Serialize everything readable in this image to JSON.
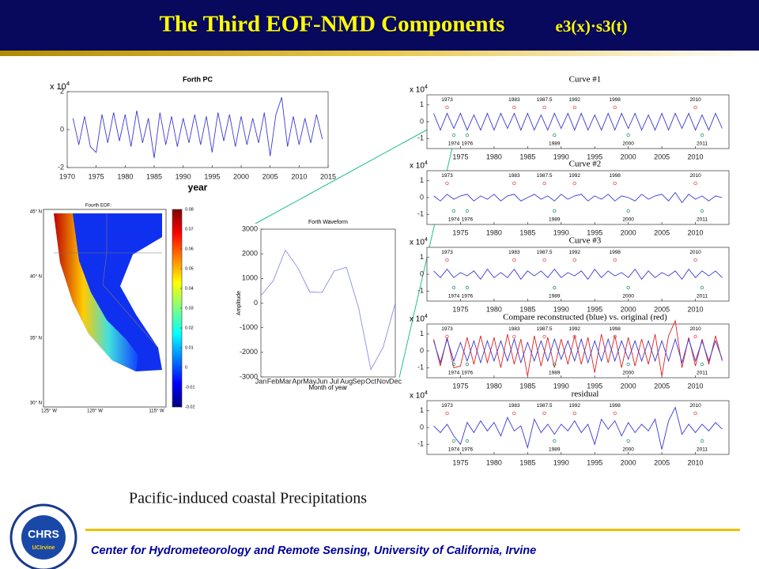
{
  "header": {
    "title": "The Third EOF-NMD Components",
    "formula": "e3(x)·s3(t)"
  },
  "caption": "Pacific-induced coastal Precipitations",
  "footer": "Center for Hydrometeorology and Remote Sensing, University of California, Irvine",
  "logo": {
    "name": "CHRS",
    "sub": "UCIrvine"
  },
  "pc": {
    "type": "line",
    "title": "Forth PC",
    "xlabel": "year",
    "multiplier": "x 10",
    "multiplier_exp": "4",
    "color": "#3a3ad6",
    "x": [
      1971,
      1972,
      1973,
      1974,
      1975,
      1976,
      1977,
      1978,
      1979,
      1980,
      1981,
      1982,
      1983,
      1984,
      1985,
      1986,
      1987,
      1988,
      1989,
      1990,
      1991,
      1992,
      1993,
      1994,
      1995,
      1996,
      1997,
      1998,
      1999,
      2000,
      2001,
      2002,
      2003,
      2004,
      2005,
      2006,
      2007,
      2008,
      2009,
      2010,
      2011,
      2012,
      2013,
      2014
    ],
    "values": [
      0.6,
      -0.8,
      0.7,
      -0.9,
      -1.2,
      0.8,
      -0.7,
      0.9,
      -0.6,
      0.8,
      -0.9,
      1.0,
      -0.7,
      0.6,
      -1.5,
      0.9,
      -0.8,
      0.7,
      -0.9,
      0.6,
      -0.7,
      0.8,
      -0.8,
      0.7,
      -1.2,
      0.9,
      -0.6,
      0.8,
      -0.9,
      0.7,
      -0.8,
      0.6,
      -0.7,
      0.9,
      -1.4,
      0.8,
      1.7,
      -0.9,
      0.7,
      -0.8,
      0.6,
      -0.7,
      0.8,
      -0.5
    ],
    "xlim": [
      1970,
      2015
    ],
    "xticks": [
      1970,
      1975,
      1980,
      1985,
      1990,
      1995,
      2000,
      2005,
      2010,
      2015
    ],
    "ylim": [
      -2,
      2
    ],
    "yticks": [
      -2,
      0,
      2
    ]
  },
  "map": {
    "title": "Fourth EOF:",
    "lat_labels": [
      "45° N",
      "40° N",
      "35° N",
      "30° N"
    ],
    "lon_labels": [
      "125° W",
      "120° W",
      "115° W"
    ],
    "colorbar": {
      "lim": [
        -0.02,
        0.08
      ],
      "ticks": [
        0.08,
        0.07,
        0.06,
        0.05,
        0.04,
        0.03,
        0.02,
        0.01,
        0,
        -0.01,
        -0.02
      ]
    }
  },
  "waveform": {
    "type": "line",
    "title": "Forth Waveform",
    "xlabel": "Month of year",
    "ylabel": "Amplitude",
    "color": "#8a8ae8",
    "categories": [
      "Jan",
      "Feb",
      "Mar",
      "Apr",
      "May",
      "Jun",
      "Jul",
      "Aug",
      "Sep",
      "Oct",
      "Nov",
      "Dec"
    ],
    "values": [
      300,
      900,
      2150,
      1450,
      450,
      430,
      1300,
      1450,
      -200,
      -2700,
      -1800,
      0
    ],
    "ylim": [
      -3000,
      3000
    ],
    "yticks": [
      -3000,
      -2000,
      -1000,
      0,
      1000,
      2000,
      3000
    ]
  },
  "panels": [
    {
      "type": "line",
      "title": "Curve #1",
      "multiplier": "x 10",
      "multiplier_exp": "4",
      "x": [
        1971,
        1972,
        1973,
        1974,
        1975,
        1976,
        1977,
        1978,
        1979,
        1980,
        1981,
        1982,
        1983,
        1984,
        1985,
        1986,
        1987,
        1988,
        1989,
        1990,
        1991,
        1992,
        1993,
        1994,
        1995,
        1996,
        1997,
        1998,
        1999,
        2000,
        2001,
        2002,
        2003,
        2004,
        2005,
        2006,
        2007,
        2008,
        2009,
        2010,
        2011,
        2012,
        2013,
        2014
      ],
      "series": [
        {
          "color": "#3a3ad6",
          "values": [
            0.5,
            -0.5,
            0.5,
            -0.4,
            0.5,
            -0.5,
            0.4,
            -0.5,
            0.5,
            -0.5,
            0.5,
            -0.4,
            0.5,
            -0.5,
            0.5,
            -0.5,
            0.4,
            -0.5,
            0.5,
            -0.4,
            0.5,
            -0.5,
            0.5,
            -0.5,
            0.4,
            -0.5,
            0.5,
            -0.5,
            0.5,
            -0.4,
            0.5,
            -0.5,
            0.4,
            -0.5,
            0.5,
            -0.5,
            0.5,
            -0.4,
            0.5,
            -0.5,
            0.4,
            -0.5,
            0.5,
            -0.4
          ]
        }
      ],
      "xlim": [
        1970,
        2015
      ],
      "xticks": [
        1975,
        1980,
        1985,
        1990,
        1995,
        2000,
        2005,
        2010
      ],
      "ylim": [
        -1.6,
        1.6
      ],
      "yticks": [
        -1,
        0,
        1
      ],
      "events_top": [
        1973,
        1983,
        1987.5,
        1992,
        1998,
        2010
      ],
      "events_bottom": [
        1974,
        1976,
        1989,
        2000,
        2011
      ]
    },
    {
      "type": "line",
      "title": "Curve #2",
      "multiplier": "x 10",
      "multiplier_exp": "4",
      "x": [
        1971,
        1972,
        1973,
        1974,
        1975,
        1976,
        1977,
        1978,
        1979,
        1980,
        1981,
        1982,
        1983,
        1984,
        1985,
        1986,
        1987,
        1988,
        1989,
        1990,
        1991,
        1992,
        1993,
        1994,
        1995,
        1996,
        1997,
        1998,
        1999,
        2000,
        2001,
        2002,
        2003,
        2004,
        2005,
        2006,
        2007,
        2008,
        2009,
        2010,
        2011,
        2012,
        2013,
        2014
      ],
      "series": [
        {
          "color": "#3a3ad6",
          "values": [
            0.1,
            -0.2,
            0.2,
            -0.1,
            0.1,
            0.2,
            -0.2,
            0.1,
            -0.1,
            0.2,
            -0.2,
            0.1,
            0.2,
            -0.2,
            0.0,
            0.2,
            -0.1,
            0.1,
            -0.2,
            0.2,
            -0.1,
            0.1,
            0.2,
            -0.2,
            0.1,
            -0.1,
            0.2,
            -0.2,
            0.1,
            0.0,
            -0.2,
            0.2,
            -0.1,
            0.1,
            0.2,
            -0.2,
            0.3,
            -0.3,
            0.2,
            -0.1,
            0.1,
            -0.2,
            0.1,
            0.0
          ]
        }
      ],
      "xlim": [
        1970,
        2015
      ],
      "xticks": [
        1975,
        1980,
        1985,
        1990,
        1995,
        2000,
        2005,
        2010
      ],
      "ylim": [
        -1.6,
        1.6
      ],
      "yticks": [
        -1,
        0,
        1
      ],
      "events_top": [
        1973,
        1983,
        1987.5,
        1992,
        1998,
        2010
      ],
      "events_bottom": [
        1974,
        1976,
        1989,
        2000,
        2011
      ]
    },
    {
      "type": "line",
      "title": "Curve #3",
      "multiplier": "x 10",
      "multiplier_exp": "4",
      "x": [
        1971,
        1972,
        1973,
        1974,
        1975,
        1976,
        1977,
        1978,
        1979,
        1980,
        1981,
        1982,
        1983,
        1984,
        1985,
        1986,
        1987,
        1988,
        1989,
        1990,
        1991,
        1992,
        1993,
        1994,
        1995,
        1996,
        1997,
        1998,
        1999,
        2000,
        2001,
        2002,
        2003,
        2004,
        2005,
        2006,
        2007,
        2008,
        2009,
        2010,
        2011,
        2012,
        2013,
        2014
      ],
      "series": [
        {
          "color": "#3a3ad6",
          "values": [
            0.2,
            -0.2,
            0.3,
            -0.2,
            0.1,
            -0.1,
            0.2,
            -0.3,
            0.3,
            -0.2,
            0.1,
            -0.2,
            0.3,
            -0.3,
            0.2,
            -0.1,
            0.2,
            -0.2,
            0.3,
            -0.2,
            0.1,
            -0.1,
            0.2,
            -0.3,
            0.3,
            -0.2,
            0.2,
            -0.1,
            0.1,
            -0.2,
            0.3,
            -0.3,
            0.2,
            -0.2,
            0.1,
            -0.1,
            0.2,
            -0.3,
            0.3,
            -0.2,
            0.2,
            -0.1,
            0.2,
            -0.2
          ]
        }
      ],
      "xlim": [
        1970,
        2015
      ],
      "xticks": [
        1975,
        1980,
        1985,
        1990,
        1995,
        2000,
        2005,
        2010
      ],
      "ylim": [
        -1.6,
        1.6
      ],
      "yticks": [
        -1,
        0,
        1
      ],
      "events_top": [
        1973,
        1983,
        1987.5,
        1992,
        1998,
        2010
      ],
      "events_bottom": [
        1974,
        1976,
        1989,
        2000,
        2011
      ]
    },
    {
      "type": "line",
      "title": "Compare reconstructed (blue) vs. original (red)",
      "multiplier": "x 10",
      "multiplier_exp": "4",
      "x": [
        1971,
        1972,
        1973,
        1974,
        1975,
        1976,
        1977,
        1978,
        1979,
        1980,
        1981,
        1982,
        1983,
        1984,
        1985,
        1986,
        1987,
        1988,
        1989,
        1990,
        1991,
        1992,
        1993,
        1994,
        1995,
        1996,
        1997,
        1998,
        1999,
        2000,
        2001,
        2002,
        2003,
        2004,
        2005,
        2006,
        2007,
        2008,
        2009,
        2010,
        2011,
        2012,
        2013,
        2014
      ],
      "series": [
        {
          "color": "#e02020",
          "values": [
            0.7,
            -0.9,
            0.8,
            -1.0,
            -0.9,
            0.8,
            -0.8,
            0.9,
            -0.7,
            0.8,
            -1.0,
            1.0,
            -0.8,
            0.7,
            -1.5,
            0.9,
            -0.9,
            0.8,
            -1.0,
            0.7,
            -0.8,
            0.9,
            -0.8,
            0.8,
            -1.3,
            1.0,
            -0.7,
            0.9,
            -1.0,
            0.8,
            -0.9,
            0.7,
            -0.8,
            1.0,
            -1.5,
            0.9,
            1.8,
            -1.0,
            0.8,
            -0.9,
            0.7,
            -0.8,
            0.9,
            -0.6
          ]
        },
        {
          "color": "#3a3ad6",
          "values": [
            0.6,
            -0.7,
            0.7,
            -0.6,
            0.5,
            -0.6,
            0.6,
            -0.7,
            0.6,
            -0.6,
            0.6,
            -0.6,
            0.7,
            -0.7,
            0.5,
            -0.6,
            0.6,
            -0.6,
            0.7,
            -0.5,
            0.6,
            -0.6,
            0.7,
            -0.7,
            0.6,
            -0.6,
            0.7,
            -0.6,
            0.6,
            -0.5,
            0.6,
            -0.6,
            0.6,
            -0.6,
            0.6,
            -0.6,
            0.7,
            -0.7,
            0.7,
            -0.6,
            0.6,
            -0.6,
            0.6,
            -0.5
          ]
        }
      ],
      "xlim": [
        1970,
        2015
      ],
      "xticks": [
        1975,
        1980,
        1985,
        1990,
        1995,
        2000,
        2005,
        2010
      ],
      "ylim": [
        -1.6,
        1.6
      ],
      "yticks": [
        -1,
        0,
        1
      ],
      "events_top": [
        1973,
        1983,
        1987.5,
        1992,
        1998,
        2010
      ],
      "events_bottom": [
        1974,
        1976,
        1989,
        2000,
        2011
      ]
    },
    {
      "type": "line",
      "title": "residual",
      "multiplier": "x 10",
      "multiplier_exp": "4",
      "x": [
        1971,
        1972,
        1973,
        1974,
        1975,
        1976,
        1977,
        1978,
        1979,
        1980,
        1981,
        1982,
        1983,
        1984,
        1985,
        1986,
        1987,
        1988,
        1989,
        1990,
        1991,
        1992,
        1993,
        1994,
        1995,
        1996,
        1997,
        1998,
        1999,
        2000,
        2001,
        2002,
        2003,
        2004,
        2005,
        2006,
        2007,
        2008,
        2009,
        2010,
        2011,
        2012,
        2013,
        2014
      ],
      "series": [
        {
          "color": "#3a3ad6",
          "values": [
            0.1,
            -0.3,
            0.2,
            -0.5,
            -1.0,
            0.3,
            -0.3,
            0.4,
            -0.2,
            0.3,
            -0.5,
            0.6,
            -0.2,
            0.1,
            -1.2,
            0.5,
            -0.3,
            0.2,
            -0.4,
            0.2,
            -0.2,
            0.4,
            -0.3,
            0.2,
            -1.0,
            0.5,
            -0.1,
            0.4,
            -0.5,
            0.3,
            -0.3,
            0.2,
            -0.2,
            0.5,
            -1.3,
            0.4,
            1.2,
            -0.4,
            0.2,
            -0.3,
            0.2,
            -0.2,
            0.3,
            -0.1
          ]
        }
      ],
      "xlim": [
        1970,
        2015
      ],
      "xticks": [
        1975,
        1980,
        1985,
        1990,
        1995,
        2000,
        2005,
        2010
      ],
      "ylim": [
        -1.6,
        1.6
      ],
      "yticks": [
        -1,
        0,
        1
      ],
      "events_top": [
        1973,
        1983,
        1987.5,
        1992,
        1998,
        2010
      ],
      "events_bottom": [
        1974,
        1976,
        1989,
        2000,
        2011
      ]
    }
  ]
}
